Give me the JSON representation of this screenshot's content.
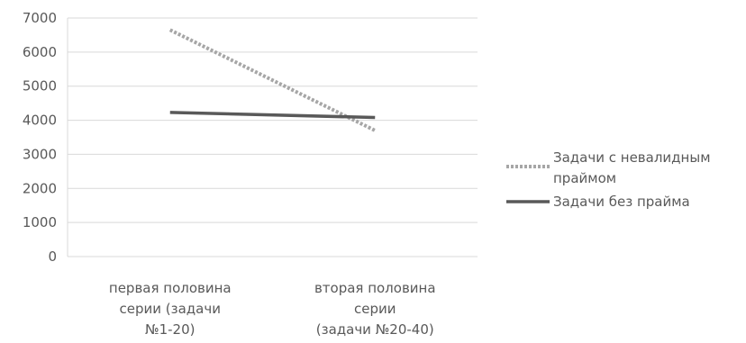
{
  "chart_data": {
    "type": "line",
    "categories": [
      [
        "первая половина",
        "серии          (задачи",
        "№1-20)"
      ],
      [
        "вторая половина",
        "серии",
        "(задачи №20-40)"
      ]
    ],
    "ylim": [
      0,
      7000
    ],
    "yticks": [
      "0",
      "1000",
      "2000",
      "3000",
      "4000",
      "5000",
      "6000",
      "7000"
    ],
    "grid": true,
    "legend_position": "right",
    "series": [
      {
        "name": "Задачи с невалидным праймом",
        "values": [
          6650,
          3700
        ],
        "color": "#a6a6a6",
        "style": "dotted"
      },
      {
        "name": "Задачи без прайма",
        "values": [
          4230,
          4080
        ],
        "color": "#595959",
        "style": "solid"
      }
    ]
  }
}
